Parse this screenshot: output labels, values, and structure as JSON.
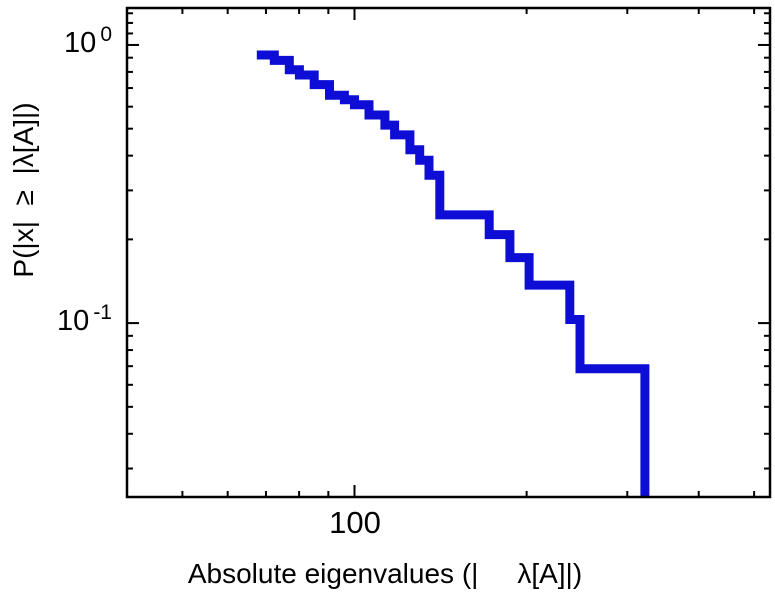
{
  "chart_data": {
    "type": "line",
    "subtype": "ccdf-step-log-log",
    "title": "",
    "xlabel": "Absolute eigenvalues (|     λ[A]|)",
    "ylabel": "P(|x|  ≥  |λ[A]|)",
    "xscale": "log",
    "yscale": "log",
    "xlim": [
      40,
      533
    ],
    "ylim": [
      0.0237,
      1.358
    ],
    "grid": false,
    "legend": "none",
    "frame_color": "#000000",
    "line_color": "#0d0dd6",
    "line_width": 9,
    "xticks_major": [
      {
        "value": 100,
        "label": "100"
      }
    ],
    "xticks_minor": [
      50,
      60,
      70,
      80,
      90,
      200,
      300,
      400,
      500
    ],
    "yticks_major": [
      {
        "value": 1,
        "base": "10",
        "exp": "0"
      },
      {
        "value": 0.1,
        "base": "10",
        "exp": "-1"
      }
    ],
    "yticks_minor": [
      1.3,
      1.2,
      1.1,
      0.9,
      0.8,
      0.7,
      0.6,
      0.5,
      0.4,
      0.3,
      0.2,
      0.09,
      0.08,
      0.07,
      0.06,
      0.05,
      0.04,
      0.03
    ],
    "start_p": 0.955,
    "steps": [
      [
        68.7,
        0.92
      ],
      [
        72.4,
        0.88
      ],
      [
        76.9,
        0.815
      ],
      [
        80.1,
        0.78
      ],
      [
        85.0,
        0.72
      ],
      [
        90.4,
        0.66
      ],
      [
        96.0,
        0.635
      ],
      [
        100.0,
        0.61
      ],
      [
        106.0,
        0.56
      ],
      [
        113.0,
        0.515
      ],
      [
        117.5,
        0.475
      ],
      [
        125.0,
        0.42
      ],
      [
        130.0,
        0.385
      ],
      [
        135.0,
        0.34
      ],
      [
        141.0,
        0.245
      ],
      [
        172.0,
        0.208
      ],
      [
        187.0,
        0.172
      ],
      [
        202.0,
        0.137
      ],
      [
        238.0,
        0.103
      ],
      [
        248.0,
        0.0685
      ],
      [
        322.0,
        0.021
      ]
    ]
  }
}
